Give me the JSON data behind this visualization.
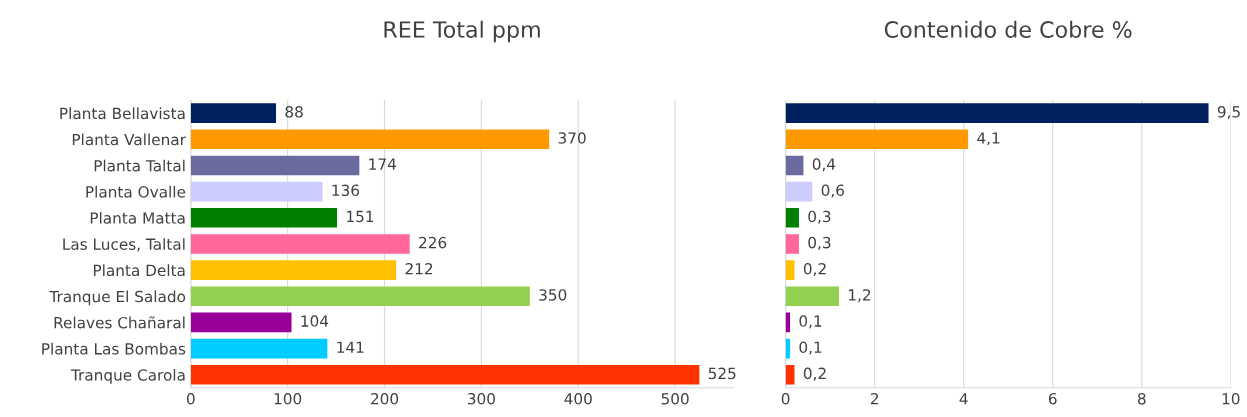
{
  "chart_data": [
    {
      "type": "bar",
      "orientation": "horizontal",
      "title": "REE Total ppm",
      "categories": [
        "Planta Bellavista",
        "Planta Vallenar",
        "Planta Taltal",
        "Planta Ovalle",
        "Planta Matta",
        "Las Luces, Taltal",
        "Planta Delta",
        "Tranque El Salado",
        "Relaves Chañaral",
        "Planta Las Bombas",
        "Tranque Carola"
      ],
      "values": [
        88,
        370,
        174,
        136,
        151,
        226,
        212,
        350,
        104,
        141,
        525
      ],
      "colors": [
        "#002060",
        "#ff9900",
        "#6a6a9e",
        "#ccccff",
        "#008000",
        "#ff6699",
        "#ffc000",
        "#92d050",
        "#990099",
        "#00ccff",
        "#ff3300"
      ],
      "data_labels": true,
      "xlim": [
        0,
        560
      ],
      "xticks": [
        0,
        100,
        200,
        300,
        400,
        500
      ],
      "grid": "x",
      "legend": false
    },
    {
      "type": "bar",
      "orientation": "horizontal",
      "title": "Contenido de Cobre %",
      "categories": [
        null,
        null,
        null,
        null,
        null,
        null,
        null,
        null,
        null,
        null,
        null
      ],
      "values": [
        9.5,
        4.1,
        0.4,
        0.6,
        0.3,
        0.3,
        0.2,
        1.2,
        0.1,
        0.1,
        0.2
      ],
      "value_labels": [
        "9,5",
        "4,1",
        "0,4",
        "0,6",
        "0,3",
        "0,3",
        "0,2",
        "1,2",
        "0,1",
        "0,1",
        "0,2"
      ],
      "colors": [
        "#002060",
        "#ff9900",
        "#6a6a9e",
        "#ccccff",
        "#008000",
        "#ff6699",
        "#ffc000",
        "#92d050",
        "#990099",
        "#00ccff",
        "#ff3300"
      ],
      "xlim": [
        0,
        10
      ],
      "xticks": [
        0,
        2,
        4,
        6,
        8,
        10
      ],
      "grid": "x",
      "legend": false
    }
  ]
}
